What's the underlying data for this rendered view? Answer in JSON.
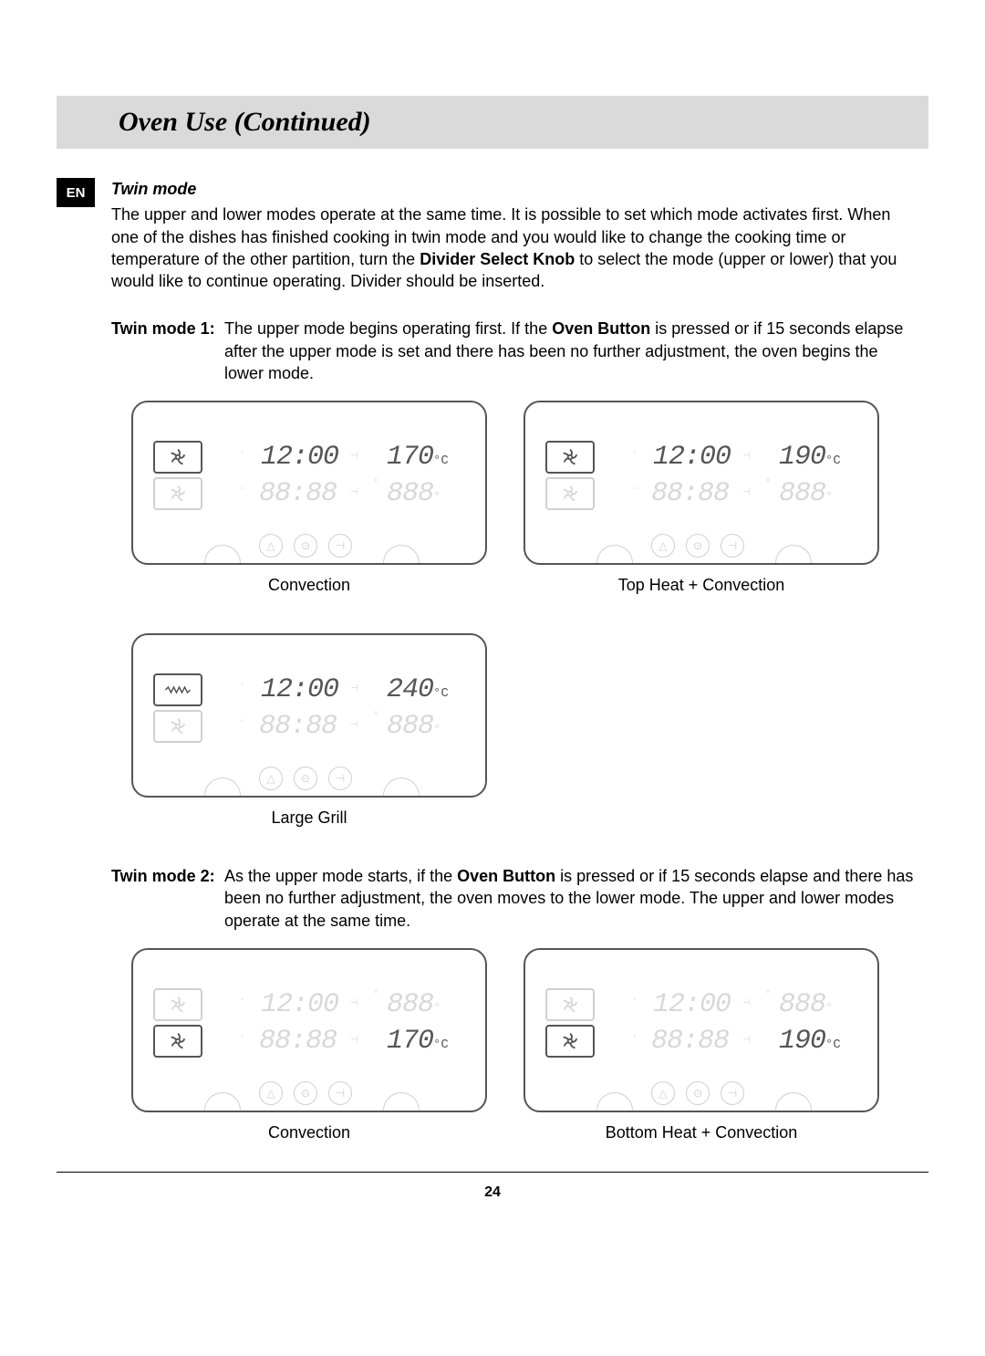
{
  "lang_badge": "EN",
  "title": "Oven Use (Continued)",
  "section": "Twin mode",
  "intro": "The upper and lower modes operate at the same time. It is possible to set which mode activates first. When one of the dishes has finished cooking in twin mode and you would like to change the cooking time or temperature of the other partition, turn the ",
  "intro_bold": "Divider Select Knob",
  "intro_tail": " to select the mode (upper or lower) that you would like to continue operating. Divider should be inserted.",
  "twin1": {
    "label": "Twin mode 1:",
    "desc_pre": "The upper mode begins operating first. If the ",
    "desc_bold": "Oven Button",
    "desc_post": " is pressed or if 15 seconds elapse after the upper mode is set and there has been no further adjustment, the oven begins the lower mode."
  },
  "twin2": {
    "label": "Twin mode 2:",
    "desc_pre": "As the upper mode starts, if the ",
    "desc_bold": "Oven Button",
    "desc_post": " is pressed or if 15 seconds elapse and there has been no further adjustment, the oven moves to the lower mode. The upper and lower modes operate at the same time."
  },
  "displays": {
    "twin1": [
      {
        "caption": "Convection",
        "time": "12:00",
        "temp": "170",
        "unit": "°C",
        "upper_icon": "fan",
        "upper_active": true,
        "lower_icon": "fan",
        "lower_active": false,
        "active_row": "top"
      },
      {
        "caption": "Top Heat + Convection",
        "time": "12:00",
        "temp": "190",
        "unit": "°C",
        "upper_icon": "fan",
        "upper_active": true,
        "lower_icon": "fan",
        "lower_active": false,
        "active_row": "top"
      },
      {
        "caption": "Large Grill",
        "time": "12:00",
        "temp": "240",
        "unit": "°C",
        "upper_icon": "grill",
        "upper_active": true,
        "lower_icon": "fan",
        "lower_active": false,
        "active_row": "top"
      }
    ],
    "twin2": [
      {
        "caption": "Convection",
        "time": "12:00",
        "temp": "170",
        "unit": "°C",
        "upper_icon": "fan",
        "upper_active": false,
        "lower_icon": "fan",
        "lower_active": true,
        "active_row": "bottom"
      },
      {
        "caption": "Bottom Heat + Convection",
        "time": "12:00",
        "temp": "190",
        "unit": "°C",
        "upper_icon": "fan",
        "upper_active": false,
        "lower_icon": "fan",
        "lower_active": true,
        "active_row": "bottom"
      }
    ]
  },
  "dim_time": "88:88",
  "dim_temp": "888",
  "page_number": "24",
  "colors": {
    "banner_bg": "#dadada",
    "bright": "#555555",
    "dim": "#d8d8d8",
    "border": "#555555"
  }
}
